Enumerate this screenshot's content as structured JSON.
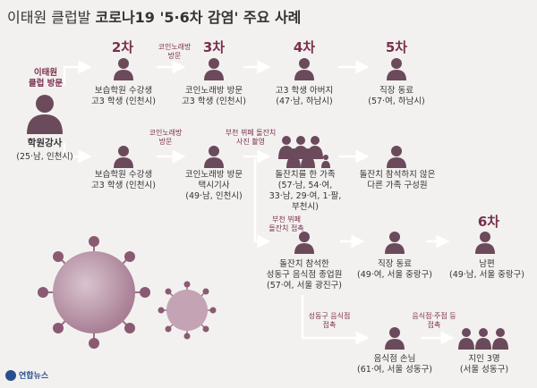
{
  "title": {
    "prefix": "이태원 클럽발 ",
    "main": "코로나19 '5·6차 감염' 주요 사례"
  },
  "stages": {
    "s2": "2차",
    "s3": "3차",
    "s4": "4차",
    "s5": "5차",
    "s6": "6차"
  },
  "source_label": {
    "line1": "이태원",
    "line2": "클럽 방문"
  },
  "source": {
    "name": "학원강사",
    "info": "(25·남, 인천시)"
  },
  "arrows": {
    "a1": {
      "l1": "코인노래방",
      "l2": "방문"
    },
    "a2": {
      "l1": "코인노래방",
      "l2": "방문"
    },
    "a3": {
      "l1": "부천 뷔페 돌잔치",
      "l2": "사진 촬영"
    },
    "a4": {
      "l1": "부천 뷔페",
      "l2": "돌잔치 접촉"
    },
    "a5": {
      "l1": "성동구 음식점",
      "l2": "접촉"
    },
    "a6": {
      "l1": "음식점·주점 등",
      "l2": "접촉"
    }
  },
  "row1": {
    "p1": {
      "l1": "보습학원 수강생",
      "l2": "고3 학생 (인천시)"
    },
    "p2": {
      "l1": "코인노래방 방문",
      "l2": "고3 학생 (인천시)"
    },
    "p3": {
      "l1": "고3 학생 아버지",
      "l2": "(47·남, 하남시)"
    },
    "p4": {
      "l1": "직장 동료",
      "l2": "(57·여, 하남시)"
    }
  },
  "row2": {
    "p1": {
      "l1": "보습학원 수강생",
      "l2": "고3 학생 (인천시)"
    },
    "p2": {
      "l1": "코인노래방 방문",
      "l2": "택시기사",
      "l3": "(49·남, 인천시)"
    },
    "p3": {
      "l1": "돌잔치를 한 가족",
      "l2": "(57·남, 54·여,",
      "l3": "33·남, 29·여, 1·팔,",
      "l4": "부천시)"
    },
    "p4": {
      "l1": "돌잔치 참석하지 않은",
      "l2": "다른 가족 구성원"
    }
  },
  "row3": {
    "p1": {
      "l1": "돌잔치 참석한",
      "l2": "성동구 음식점 종업원",
      "l3": "(57·여, 서울 광진구)"
    },
    "p2": {
      "l1": "직장 동료",
      "l2": "(49·여, 서울 중랑구)"
    },
    "p3": {
      "l1": "남편",
      "l2": "(49·남, 서울 중랑구)"
    }
  },
  "row4": {
    "p1": {
      "l1": "음식점 손님",
      "l2": "(61·여, 서울 성동구)"
    },
    "p2": {
      "l1": "지인 3명",
      "l2": "(서울 성동구)"
    }
  },
  "logo": "연합뉴스",
  "colors": {
    "accent": "#7a2f4d",
    "person": "#6b4a5c",
    "line": "#ffffff",
    "virus": "#b38aa0"
  }
}
